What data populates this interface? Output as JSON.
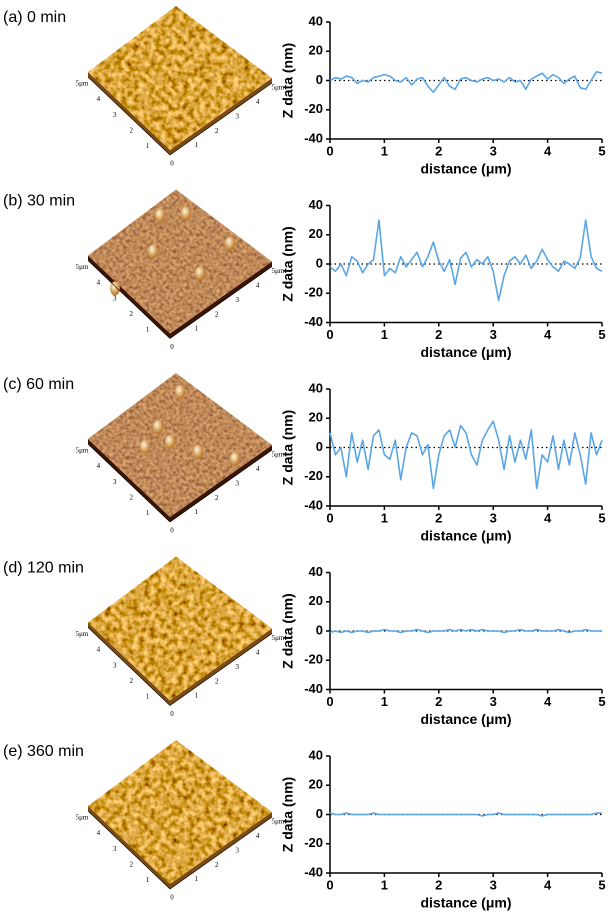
{
  "chart_data": [
    {
      "type": "line",
      "title": "(a) 0 min",
      "xlabel": "distance (μm)",
      "ylabel": "Z data (nm)",
      "color": "#5aa5e6",
      "x": [
        0,
        0.1,
        0.2,
        0.3,
        0.4,
        0.5,
        0.6,
        0.7,
        0.8,
        0.9,
        1,
        1.1,
        1.2,
        1.3,
        1.4,
        1.5,
        1.6,
        1.7,
        1.8,
        1.9,
        2,
        2.1,
        2.2,
        2.3,
        2.4,
        2.5,
        2.6,
        2.7,
        2.8,
        2.9,
        3,
        3.1,
        3.2,
        3.3,
        3.4,
        3.5,
        3.6,
        3.7,
        3.8,
        3.9,
        4,
        4.1,
        4.2,
        4.3,
        4.4,
        4.5,
        4.6,
        4.7,
        4.8,
        4.9,
        5
      ],
      "values": [
        0,
        2,
        1,
        3,
        2,
        -2,
        0,
        -1,
        2,
        3,
        4,
        3,
        0,
        -1,
        2,
        -3,
        1,
        2,
        -4,
        -8,
        -3,
        2,
        -4,
        -6,
        1,
        2,
        0,
        -1,
        1,
        2,
        0,
        1,
        -1,
        2,
        -1,
        0,
        -6,
        1,
        3,
        5,
        1,
        4,
        2,
        -2,
        1,
        3,
        -5,
        -6,
        0,
        6,
        5
      ],
      "xlim": [
        0,
        5
      ],
      "ylim": [
        -40,
        40
      ],
      "xticks": [
        0,
        1,
        2,
        3,
        4,
        5
      ],
      "yticks": [
        -40,
        -20,
        0,
        20,
        40
      ],
      "reference_line": 0
    },
    {
      "type": "line",
      "title": "(b) 30 min",
      "xlabel": "distance (μm)",
      "ylabel": "Z data (nm)",
      "color": "#5aa5e6",
      "x": [
        0,
        0.1,
        0.2,
        0.3,
        0.4,
        0.5,
        0.6,
        0.7,
        0.8,
        0.9,
        1,
        1.1,
        1.2,
        1.3,
        1.4,
        1.5,
        1.6,
        1.7,
        1.8,
        1.9,
        2,
        2.1,
        2.2,
        2.3,
        2.4,
        2.5,
        2.6,
        2.7,
        2.8,
        2.9,
        3,
        3.1,
        3.2,
        3.3,
        3.4,
        3.5,
        3.6,
        3.7,
        3.8,
        3.9,
        4,
        4.1,
        4.2,
        4.3,
        4.4,
        4.5,
        4.6,
        4.7,
        4.8,
        4.9,
        5
      ],
      "values": [
        -2,
        -5,
        0,
        -8,
        5,
        2,
        -6,
        0,
        3,
        30,
        -8,
        -3,
        -6,
        5,
        -2,
        3,
        8,
        -2,
        5,
        15,
        2,
        -5,
        3,
        -14,
        4,
        8,
        -2,
        3,
        0,
        5,
        -5,
        -25,
        -8,
        2,
        5,
        0,
        6,
        -3,
        2,
        10,
        3,
        -2,
        -5,
        2,
        0,
        -3,
        4,
        30,
        5,
        -3,
        -5
      ],
      "xlim": [
        0,
        5
      ],
      "ylim": [
        -40,
        40
      ],
      "xticks": [
        0,
        1,
        2,
        3,
        4,
        5
      ],
      "yticks": [
        -40,
        -20,
        0,
        20,
        40
      ],
      "reference_line": 0
    },
    {
      "type": "line",
      "title": "(c) 60 min",
      "xlabel": "distance (μm)",
      "ylabel": "Z data (nm)",
      "color": "#5aa5e6",
      "x": [
        0,
        0.1,
        0.2,
        0.3,
        0.4,
        0.5,
        0.6,
        0.7,
        0.8,
        0.9,
        1,
        1.1,
        1.2,
        1.3,
        1.4,
        1.5,
        1.6,
        1.7,
        1.8,
        1.9,
        2,
        2.1,
        2.2,
        2.3,
        2.4,
        2.5,
        2.6,
        2.7,
        2.8,
        2.9,
        3,
        3.1,
        3.2,
        3.3,
        3.4,
        3.5,
        3.6,
        3.7,
        3.8,
        3.9,
        4,
        4.1,
        4.2,
        4.3,
        4.4,
        4.5,
        4.6,
        4.7,
        4.8,
        4.9,
        5
      ],
      "values": [
        10,
        -5,
        0,
        -20,
        10,
        -10,
        5,
        -15,
        8,
        12,
        -5,
        -8,
        5,
        -22,
        0,
        10,
        8,
        -5,
        2,
        -28,
        -5,
        8,
        12,
        0,
        15,
        10,
        -5,
        -12,
        5,
        12,
        18,
        5,
        -15,
        8,
        -10,
        5,
        -8,
        12,
        -28,
        -5,
        -10,
        8,
        -15,
        5,
        -12,
        10,
        -5,
        -25,
        10,
        -5,
        5
      ],
      "xlim": [
        0,
        5
      ],
      "ylim": [
        -40,
        40
      ],
      "xticks": [
        0,
        1,
        2,
        3,
        4,
        5
      ],
      "yticks": [
        -40,
        -20,
        0,
        20,
        40
      ],
      "reference_line": 0
    },
    {
      "type": "line",
      "title": "(d) 120 min",
      "xlabel": "distance (μm)",
      "ylabel": "Z data (nm)",
      "color": "#5aa5e6",
      "x": [
        0,
        0.1,
        0.2,
        0.3,
        0.4,
        0.5,
        0.6,
        0.7,
        0.8,
        0.9,
        1,
        1.1,
        1.2,
        1.3,
        1.4,
        1.5,
        1.6,
        1.7,
        1.8,
        1.9,
        2,
        2.1,
        2.2,
        2.3,
        2.4,
        2.5,
        2.6,
        2.7,
        2.8,
        2.9,
        3,
        3.1,
        3.2,
        3.3,
        3.4,
        3.5,
        3.6,
        3.7,
        3.8,
        3.9,
        4,
        4.1,
        4.2,
        4.3,
        4.4,
        4.5,
        4.6,
        4.7,
        4.8,
        4.9,
        5
      ],
      "values": [
        -1,
        0,
        -1,
        0,
        -1,
        0,
        0,
        -1,
        0,
        0,
        1,
        0,
        0,
        -1,
        0,
        0,
        1,
        0,
        -1,
        0,
        0,
        0,
        1,
        0,
        1,
        0,
        1,
        0,
        1,
        0,
        0,
        0,
        -1,
        0,
        0,
        1,
        0,
        0,
        1,
        0,
        0,
        0,
        1,
        0,
        -1,
        0,
        0,
        1,
        0,
        0,
        0
      ],
      "xlim": [
        0,
        5
      ],
      "ylim": [
        -40,
        40
      ],
      "xticks": [
        0,
        1,
        2,
        3,
        4,
        5
      ],
      "yticks": [
        -40,
        -20,
        0,
        20,
        40
      ],
      "reference_line": 0
    },
    {
      "type": "line",
      "title": "(e) 360 min",
      "xlabel": "distance (μm)",
      "ylabel": "Z data (nm)",
      "color": "#5aa5e6",
      "x": [
        0,
        0.1,
        0.2,
        0.3,
        0.4,
        0.5,
        0.6,
        0.7,
        0.8,
        0.9,
        1,
        1.1,
        1.2,
        1.3,
        1.4,
        1.5,
        1.6,
        1.7,
        1.8,
        1.9,
        2,
        2.1,
        2.2,
        2.3,
        2.4,
        2.5,
        2.6,
        2.7,
        2.8,
        2.9,
        3,
        3.1,
        3.2,
        3.3,
        3.4,
        3.5,
        3.6,
        3.7,
        3.8,
        3.9,
        4,
        4.1,
        4.2,
        4.3,
        4.4,
        4.5,
        4.6,
        4.7,
        4.8,
        4.9,
        5
      ],
      "values": [
        1,
        0,
        0,
        1,
        0,
        0,
        0,
        0,
        1,
        0,
        0,
        0,
        0,
        0,
        0,
        0,
        0,
        0,
        0,
        0,
        0,
        0,
        0,
        0,
        0,
        0,
        0,
        0,
        -1,
        0,
        0,
        1,
        0,
        0,
        0,
        0,
        0,
        0,
        0,
        -1,
        0,
        0,
        0,
        0,
        0,
        0,
        0,
        0,
        0,
        1,
        1
      ],
      "xlim": [
        0,
        5
      ],
      "ylim": [
        -40,
        40
      ],
      "xticks": [
        0,
        1,
        2,
        3,
        4,
        5
      ],
      "yticks": [
        -40,
        -20,
        0,
        20,
        40
      ],
      "reference_line": 0
    }
  ],
  "afm_axis": {
    "left": [
      "5μm",
      "4",
      "3",
      "2",
      "1"
    ],
    "right": [
      "1",
      "2",
      "3",
      "4",
      "5μm"
    ],
    "origin": "0"
  }
}
